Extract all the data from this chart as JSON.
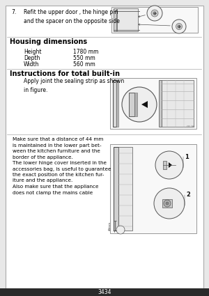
{
  "bg_color": "#e8e8e8",
  "page_bg": "#ffffff",
  "border_color": "#aaaaaa",
  "title_color": "#000000",
  "text_color": "#222222",
  "gray_light": "#f0f0f0",
  "gray_mid": "#cccccc",
  "gray_dark": "#888888",
  "black_bar": "#2a2a2a",
  "section1_step": "7.",
  "section1_text": "Refit the upper door , the hinge pin\nand the spacer on the opposite side",
  "housing_title": "Housing dimensions",
  "housing_rows": [
    [
      "Height",
      "1780 mm"
    ],
    [
      "Depth",
      "550 mm"
    ],
    [
      "Width",
      "560 mm"
    ]
  ],
  "section2_title": "Instructions for total built-in",
  "section2_text": "Apply joint the sealing strip as shown\nin figure.",
  "section3_text1": "Make sure that a distance of 44 mm\nis maintained in the lower part bet-\nween the kitchen furniture and the\nborder of the appliance.",
  "section3_text2": "The lower hinge cover inserted in the\naccessories bag, is useful to guarantee\nthe exact position of the kitchen fur-\niture and the appliance.",
  "section3_text3": "Also make sure that the appliance\ndoes not clamp the mains cable"
}
